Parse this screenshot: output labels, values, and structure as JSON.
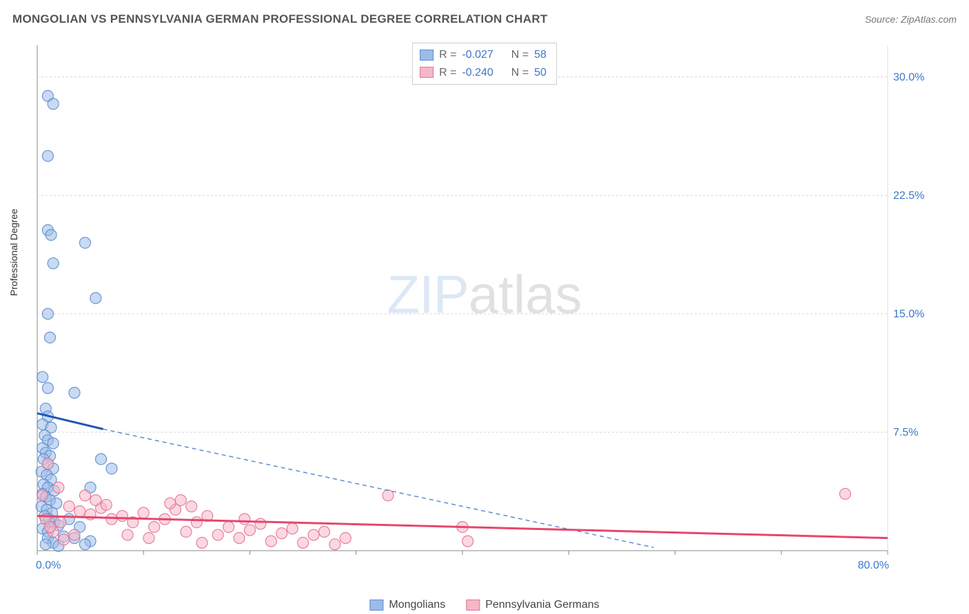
{
  "title": "MONGOLIAN VS PENNSYLVANIA GERMAN PROFESSIONAL DEGREE CORRELATION CHART",
  "source": "Source: ZipAtlas.com",
  "ylabel": "Professional Degree",
  "watermark": {
    "zip": "ZIP",
    "atlas": "atlas"
  },
  "chart": {
    "type": "scatter",
    "xlim": [
      0,
      80
    ],
    "ylim": [
      0,
      32
    ],
    "xaxis": {
      "ticks": [
        0,
        10,
        20,
        30,
        40,
        50,
        60,
        70,
        80
      ],
      "labels_at": [
        0,
        80
      ],
      "label_suffix": "%",
      "label_color": "#3b78c9",
      "label_fontsize": 16
    },
    "yaxis": {
      "ticks": [
        7.5,
        15.0,
        22.5,
        30.0
      ],
      "label_suffix": "%",
      "label_color": "#3b78c9",
      "label_fontsize": 16,
      "side": "right"
    },
    "grid_color": "#d5d5d5",
    "grid_dash": "3,3",
    "axis_line_color": "#888888",
    "background": "#ffffff",
    "marker_radius": 8,
    "marker_opacity": 0.55,
    "marker_stroke_opacity": 0.9,
    "series": [
      {
        "name": "Mongolians",
        "fill": "#9cbce6",
        "stroke": "#5b8cd1",
        "R": "-0.027",
        "N": "58",
        "trend": {
          "solid": {
            "x1": 0,
            "y1": 8.7,
            "x2": 6.2,
            "y2": 7.7,
            "color": "#1f56b5",
            "width": 3
          },
          "dashed": {
            "x1": 6.2,
            "y1": 7.7,
            "x2": 58,
            "y2": 0.2,
            "color": "#5b8cd1",
            "width": 1.5,
            "dash": "6,5"
          }
        },
        "points": [
          [
            1.0,
            28.8
          ],
          [
            1.5,
            28.3
          ],
          [
            1.0,
            25.0
          ],
          [
            1.0,
            20.3
          ],
          [
            1.3,
            20.0
          ],
          [
            4.5,
            19.5
          ],
          [
            1.5,
            18.2
          ],
          [
            5.5,
            16.0
          ],
          [
            1.0,
            15.0
          ],
          [
            1.2,
            13.5
          ],
          [
            0.5,
            11.0
          ],
          [
            1.0,
            10.3
          ],
          [
            3.5,
            10.0
          ],
          [
            0.8,
            9.0
          ],
          [
            1.0,
            8.5
          ],
          [
            0.5,
            8.0
          ],
          [
            1.3,
            7.8
          ],
          [
            0.7,
            7.3
          ],
          [
            1.0,
            7.0
          ],
          [
            1.5,
            6.8
          ],
          [
            0.5,
            6.5
          ],
          [
            0.8,
            6.2
          ],
          [
            1.2,
            6.0
          ],
          [
            0.6,
            5.8
          ],
          [
            1.0,
            5.5
          ],
          [
            1.5,
            5.2
          ],
          [
            0.4,
            5.0
          ],
          [
            0.9,
            4.8
          ],
          [
            1.3,
            4.5
          ],
          [
            0.6,
            4.2
          ],
          [
            1.0,
            4.0
          ],
          [
            1.6,
            3.8
          ],
          [
            0.5,
            3.6
          ],
          [
            0.8,
            3.4
          ],
          [
            1.2,
            3.2
          ],
          [
            1.8,
            3.0
          ],
          [
            0.4,
            2.8
          ],
          [
            0.9,
            2.6
          ],
          [
            1.4,
            2.4
          ],
          [
            0.7,
            2.2
          ],
          [
            1.1,
            2.0
          ],
          [
            1.6,
            1.8
          ],
          [
            2.0,
            1.6
          ],
          [
            0.5,
            1.4
          ],
          [
            1.0,
            1.2
          ],
          [
            6.0,
            5.8
          ],
          [
            7.0,
            5.2
          ],
          [
            5.0,
            4.0
          ],
          [
            3.0,
            2.0
          ],
          [
            4.0,
            1.5
          ],
          [
            3.5,
            0.8
          ],
          [
            5.0,
            0.6
          ],
          [
            1.0,
            0.8
          ],
          [
            1.5,
            0.5
          ],
          [
            2.5,
            0.9
          ],
          [
            0.8,
            0.4
          ],
          [
            2.0,
            0.3
          ],
          [
            4.5,
            0.4
          ]
        ]
      },
      {
        "name": "Pennsylvania Germans",
        "fill": "#f5b8c9",
        "stroke": "#e5718f",
        "R": "-0.240",
        "N": "50",
        "trend": {
          "solid": {
            "x1": 0,
            "y1": 2.2,
            "x2": 80,
            "y2": 0.8,
            "color": "#e5466e",
            "width": 3
          }
        },
        "points": [
          [
            1.0,
            5.5
          ],
          [
            2.0,
            4.0
          ],
          [
            0.5,
            3.5
          ],
          [
            3.0,
            2.8
          ],
          [
            4.0,
            2.5
          ],
          [
            5.0,
            2.3
          ],
          [
            6.0,
            2.7
          ],
          [
            7.0,
            2.0
          ],
          [
            8.0,
            2.2
          ],
          [
            9.0,
            1.8
          ],
          [
            10.0,
            2.4
          ],
          [
            11.0,
            1.5
          ],
          [
            12.0,
            2.0
          ],
          [
            13.0,
            2.6
          ],
          [
            14.0,
            1.2
          ],
          [
            15.0,
            1.8
          ],
          [
            16.0,
            2.2
          ],
          [
            17.0,
            1.0
          ],
          [
            18.0,
            1.5
          ],
          [
            19.0,
            0.8
          ],
          [
            20.0,
            1.3
          ],
          [
            21.0,
            1.7
          ],
          [
            22.0,
            0.6
          ],
          [
            23.0,
            1.1
          ],
          [
            24.0,
            1.4
          ],
          [
            25.0,
            0.5
          ],
          [
            26.0,
            1.0
          ],
          [
            27.0,
            1.2
          ],
          [
            28.0,
            0.4
          ],
          [
            29.0,
            0.8
          ],
          [
            12.5,
            3.0
          ],
          [
            13.5,
            3.2
          ],
          [
            14.5,
            2.8
          ],
          [
            4.5,
            3.5
          ],
          [
            5.5,
            3.2
          ],
          [
            6.5,
            2.9
          ],
          [
            33.0,
            3.5
          ],
          [
            40.0,
            1.5
          ],
          [
            40.5,
            0.6
          ],
          [
            3.5,
            1.0
          ],
          [
            2.5,
            0.7
          ],
          [
            1.5,
            1.2
          ],
          [
            0.8,
            2.0
          ],
          [
            1.2,
            1.5
          ],
          [
            2.2,
            1.8
          ],
          [
            8.5,
            1.0
          ],
          [
            10.5,
            0.8
          ],
          [
            15.5,
            0.5
          ],
          [
            76.0,
            3.6
          ],
          [
            19.5,
            2.0
          ]
        ]
      }
    ]
  },
  "legend_top": {
    "R_label": "R =",
    "N_label": "N =",
    "label_color": "#666666",
    "value_color": "#3b78c9"
  },
  "legend_bottom": {
    "items": [
      "Mongolians",
      "Pennsylvania Germans"
    ]
  }
}
